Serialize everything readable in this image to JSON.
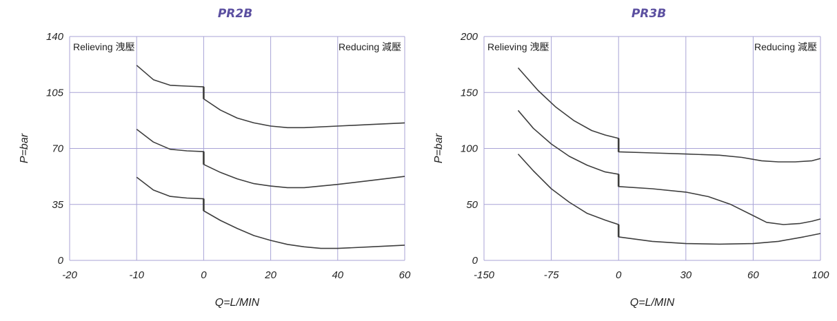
{
  "colors": {
    "grid": "#a8a3d6",
    "curve": "#3d3d3d",
    "title": "#5b4fa0"
  },
  "chart_data": [
    {
      "type": "line",
      "title": "PR2B",
      "xlabel": "Q=L/MIN",
      "ylabel": "P=bar",
      "region_left": "Relieving 洩壓",
      "region_right": "Reducing 減壓",
      "x_ticks": [
        {
          "value": -20,
          "label": "-20"
        },
        {
          "value": -10,
          "label": "-10"
        },
        {
          "value": 0,
          "label": "0"
        },
        {
          "value": 20,
          "label": "20"
        },
        {
          "value": 40,
          "label": "40"
        },
        {
          "value": 60,
          "label": "60"
        }
      ],
      "y_ticks": [
        {
          "value": 0,
          "label": "0"
        },
        {
          "value": 35,
          "label": "35"
        },
        {
          "value": 70,
          "label": "70"
        },
        {
          "value": 105,
          "label": "105"
        },
        {
          "value": 140,
          "label": "140"
        }
      ],
      "ylim": [
        0,
        140
      ],
      "grid": true,
      "series": [
        {
          "segments": [
            [
              [
                -10,
                122
              ],
              [
                -7.5,
                113
              ],
              [
                -5,
                109.5
              ],
              [
                -2.5,
                109
              ],
              [
                0,
                108.5
              ]
            ],
            [
              [
                0,
                101
              ],
              [
                5,
                94
              ],
              [
                10,
                89
              ],
              [
                15,
                86
              ],
              [
                20,
                84
              ],
              [
                25,
                83
              ],
              [
                30,
                83
              ],
              [
                40,
                84
              ],
              [
                50,
                85
              ],
              [
                60,
                86
              ]
            ]
          ]
        },
        {
          "segments": [
            [
              [
                -10,
                82
              ],
              [
                -7.5,
                74
              ],
              [
                -5,
                69.5
              ],
              [
                -2.5,
                68.5
              ],
              [
                0,
                68
              ]
            ],
            [
              [
                0,
                60
              ],
              [
                5,
                55
              ],
              [
                10,
                51
              ],
              [
                15,
                48
              ],
              [
                20,
                46.5
              ],
              [
                25,
                45.5
              ],
              [
                30,
                45.5
              ],
              [
                40,
                47.5
              ],
              [
                50,
                50
              ],
              [
                60,
                52.5
              ]
            ]
          ]
        },
        {
          "segments": [
            [
              [
                -10,
                52
              ],
              [
                -7.5,
                44
              ],
              [
                -5,
                40
              ],
              [
                -2.5,
                39
              ],
              [
                0,
                38.5
              ]
            ],
            [
              [
                0,
                31
              ],
              [
                5,
                25
              ],
              [
                10,
                20
              ],
              [
                15,
                15.5
              ],
              [
                20,
                12.5
              ],
              [
                25,
                10
              ],
              [
                30,
                8.5
              ],
              [
                35,
                7.5
              ],
              [
                40,
                7.5
              ],
              [
                50,
                8.5
              ],
              [
                60,
                9.5
              ]
            ]
          ]
        }
      ]
    },
    {
      "type": "line",
      "title": "PR3B",
      "xlabel": "Q=L/MIN",
      "ylabel": "P=bar",
      "region_left": "Relieving 洩壓",
      "region_right": "Reducing 減壓",
      "x_ticks": [
        {
          "value": -150,
          "label": "-150"
        },
        {
          "value": -75,
          "label": "-75"
        },
        {
          "value": 0,
          "label": "0"
        },
        {
          "value": 30,
          "label": "30"
        },
        {
          "value": 60,
          "label": "60"
        },
        {
          "value": 100,
          "label": "100"
        }
      ],
      "y_ticks": [
        {
          "value": 0,
          "label": "0"
        },
        {
          "value": 50,
          "label": "50"
        },
        {
          "value": 100,
          "label": "100"
        },
        {
          "value": 150,
          "label": "150"
        },
        {
          "value": 200,
          "label": "200"
        }
      ],
      "ylim": [
        0,
        200
      ],
      "grid": true,
      "series": [
        {
          "segments": [
            [
              [
                -112,
                172
              ],
              [
                -90,
                152
              ],
              [
                -70,
                137
              ],
              [
                -50,
                125
              ],
              [
                -30,
                116
              ],
              [
                -15,
                112
              ],
              [
                0,
                109
              ]
            ],
            [
              [
                0,
                97
              ],
              [
                15,
                96
              ],
              [
                30,
                95
              ],
              [
                45,
                94
              ],
              [
                55,
                92
              ],
              [
                65,
                89
              ],
              [
                75,
                88
              ],
              [
                85,
                88
              ],
              [
                95,
                89
              ],
              [
                100,
                91
              ]
            ]
          ]
        },
        {
          "segments": [
            [
              [
                -112,
                134
              ],
              [
                -95,
                118
              ],
              [
                -75,
                104
              ],
              [
                -55,
                93
              ],
              [
                -35,
                85
              ],
              [
                -15,
                79
              ],
              [
                0,
                77
              ]
            ],
            [
              [
                0,
                66
              ],
              [
                15,
                64
              ],
              [
                30,
                61
              ],
              [
                40,
                57
              ],
              [
                50,
                50
              ],
              [
                60,
                40
              ],
              [
                68,
                34
              ],
              [
                78,
                32
              ],
              [
                88,
                33
              ],
              [
                95,
                35
              ],
              [
                100,
                37
              ]
            ]
          ]
        },
        {
          "segments": [
            [
              [
                -112,
                95
              ],
              [
                -95,
                80
              ],
              [
                -75,
                64
              ],
              [
                -55,
                52
              ],
              [
                -35,
                42
              ],
              [
                -15,
                36
              ],
              [
                0,
                32
              ]
            ],
            [
              [
                0,
                21
              ],
              [
                15,
                17
              ],
              [
                30,
                15
              ],
              [
                45,
                14.5
              ],
              [
                60,
                15
              ],
              [
                75,
                17
              ],
              [
                90,
                21
              ],
              [
                100,
                24
              ]
            ]
          ]
        }
      ]
    }
  ]
}
